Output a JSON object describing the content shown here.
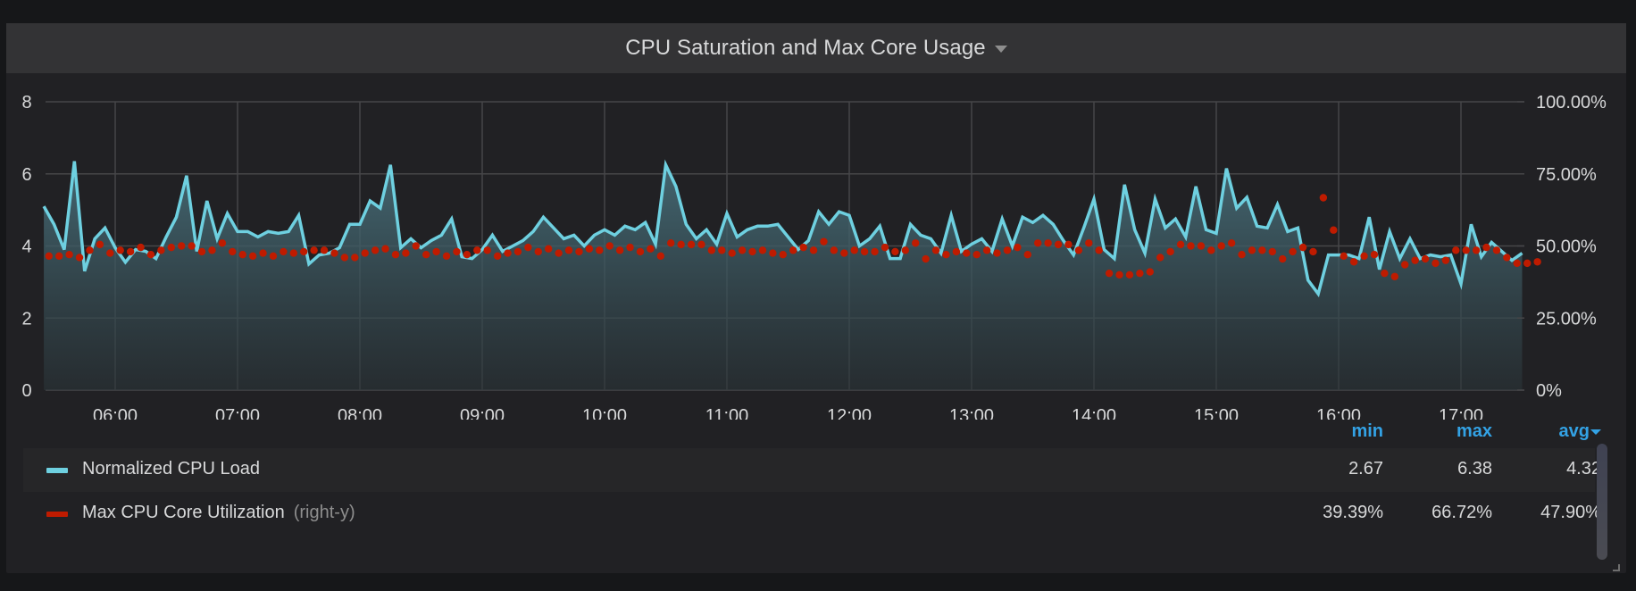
{
  "panel": {
    "title": "CPU Saturation and Max Core Usage",
    "menu_icon": "caret-down-icon"
  },
  "axes": {
    "left_ticks": [
      "8",
      "6",
      "4",
      "2",
      "0"
    ],
    "right_ticks": [
      "100.00%",
      "75.00%",
      "50.00%",
      "25.00%",
      "0%"
    ],
    "x_ticks": [
      "06:00",
      "07:00",
      "08:00",
      "09:00",
      "10:00",
      "11:00",
      "12:00",
      "13:00",
      "14:00",
      "15:00",
      "16:00",
      "17:00"
    ]
  },
  "legend": {
    "headers": {
      "min": "min",
      "max": "max",
      "avg": "avg"
    },
    "sort_icon": "sort-desc-icon",
    "series": [
      {
        "name": "Normalized CPU Load",
        "axis_hint": "",
        "color": "#6ed0e0",
        "min": "2.67",
        "max": "6.38",
        "avg": "4.32"
      },
      {
        "name": "Max CPU Core Utilization",
        "axis_hint": "(right-y)",
        "color": "#bf1b00",
        "min": "39.39%",
        "max": "66.72%",
        "avg": "47.90%"
      }
    ]
  },
  "colors": {
    "load_line": "#6ed0e0",
    "core_points": "#bf1b00",
    "legend_header": "#33a2e5",
    "grid": "#464648"
  },
  "chart_data": {
    "type": "line",
    "title": "CPU Saturation and Max Core Usage",
    "xlabel": "",
    "ylabel": "",
    "ylim": [
      0,
      8
    ],
    "y2lim": [
      0,
      100
    ],
    "grid": true,
    "legend_position": "bottom",
    "x_start": "05:25",
    "x_step_minutes": 5,
    "x_tick_labels": [
      "06:00",
      "07:00",
      "08:00",
      "09:00",
      "10:00",
      "11:00",
      "12:00",
      "13:00",
      "14:00",
      "15:00",
      "16:00",
      "17:00"
    ],
    "series": [
      {
        "name": "Normalized CPU Load",
        "axis": "left",
        "style": "line+area",
        "values": [
          5.1,
          4.6,
          3.9,
          6.35,
          3.3,
          4.2,
          4.5,
          3.95,
          3.55,
          3.9,
          3.85,
          3.65,
          4.25,
          4.8,
          5.95,
          3.85,
          5.25,
          4.2,
          4.9,
          4.4,
          4.4,
          4.25,
          4.4,
          4.35,
          4.4,
          4.85,
          3.5,
          3.75,
          3.8,
          3.95,
          4.6,
          4.6,
          5.25,
          5.05,
          6.25,
          3.95,
          4.2,
          3.95,
          4.15,
          4.3,
          4.75,
          3.7,
          3.65,
          3.9,
          4.3,
          3.85,
          4.0,
          4.15,
          4.4,
          4.8,
          4.5,
          4.2,
          4.3,
          4.0,
          4.3,
          4.45,
          4.3,
          4.55,
          4.45,
          4.65,
          4.05,
          6.25,
          5.65,
          4.6,
          4.2,
          4.45,
          4.05,
          4.9,
          4.25,
          4.45,
          4.55,
          4.55,
          4.6,
          4.25,
          3.9,
          4.15,
          4.95,
          4.6,
          4.95,
          4.85,
          4.0,
          4.2,
          4.55,
          3.65,
          3.65,
          4.6,
          4.3,
          4.2,
          3.8,
          4.85,
          3.85,
          4.05,
          4.2,
          3.85,
          4.75,
          4.0,
          4.8,
          4.65,
          4.85,
          4.6,
          4.15,
          3.75,
          4.5,
          5.3,
          3.9,
          3.65,
          5.7,
          4.45,
          3.8,
          5.3,
          4.5,
          4.75,
          4.25,
          5.65,
          4.45,
          4.35,
          6.15,
          5.05,
          5.35,
          4.55,
          4.5,
          5.15,
          4.4,
          4.5,
          3.05,
          2.67,
          3.75,
          3.75,
          3.75,
          3.65,
          4.8,
          3.35,
          4.4,
          3.65,
          4.2,
          3.65,
          3.75,
          3.7,
          3.75,
          2.95,
          4.6,
          3.7,
          4.1,
          3.85,
          3.6,
          3.8
        ]
      },
      {
        "name": "Max CPU Core Utilization",
        "axis": "right",
        "style": "points",
        "values": [
          46.5,
          46.5,
          47.0,
          46.0,
          48.5,
          50.5,
          47.5,
          48.5,
          48.0,
          49.5,
          47.0,
          48.5,
          49.5,
          50.0,
          50.0,
          48.0,
          48.5,
          51.0,
          48.0,
          47.0,
          46.5,
          47.5,
          46.5,
          48.0,
          47.5,
          48.0,
          48.5,
          48.5,
          47.5,
          46.0,
          46.0,
          47.5,
          48.5,
          49.0,
          47.0,
          47.5,
          50.0,
          47.0,
          48.0,
          46.5,
          48.0,
          47.0,
          48.5,
          48.5,
          46.5,
          47.5,
          48.0,
          49.5,
          48.0,
          49.0,
          47.5,
          48.5,
          48.0,
          49.0,
          48.5,
          50.0,
          48.5,
          49.5,
          48.0,
          49.0,
          46.5,
          51.0,
          50.5,
          50.5,
          50.5,
          48.5,
          48.5,
          47.5,
          48.5,
          48.0,
          48.5,
          47.5,
          47.0,
          48.5,
          49.5,
          48.5,
          51.5,
          48.5,
          47.5,
          48.5,
          48.0,
          48.0,
          49.5,
          48.0,
          48.5,
          51.0,
          45.5,
          48.5,
          47.0,
          48.0,
          47.5,
          47.0,
          48.5,
          47.5,
          48.5,
          49.5,
          47.0,
          51.0,
          51.0,
          50.5,
          50.5,
          48.5,
          51.0,
          48.5,
          40.5,
          40.0,
          40.0,
          40.5,
          41.0,
          46.0,
          48.0,
          50.5,
          50.0,
          50.0,
          48.5,
          50.0,
          51.0,
          47.0,
          48.5,
          48.5,
          48.0,
          45.5,
          48.0,
          49.5,
          48.0,
          66.72,
          55.5,
          46.5,
          44.5,
          46.5,
          47.0,
          40.5,
          39.39,
          43.5,
          45.0,
          45.5,
          44.0,
          45.0,
          48.5,
          48.5,
          48.5,
          49.5,
          48.5,
          46.0,
          44.0,
          44.0,
          44.5
        ]
      }
    ]
  }
}
